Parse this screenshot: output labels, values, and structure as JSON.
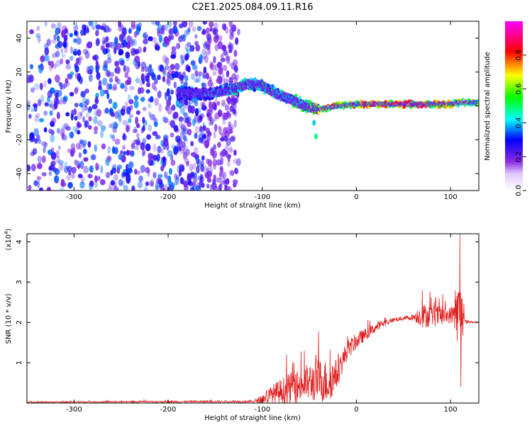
{
  "title": "C2E1.2025.084.09.11.R16",
  "chart_data": [
    {
      "type": "heatmap",
      "xlabel": "Height of straight line (km)",
      "ylabel": "Frequency (Hz)",
      "xlim": [
        -350,
        130
      ],
      "ylim": [
        -50,
        50
      ],
      "x_ticks": [
        -300,
        -200,
        -100,
        0,
        100
      ],
      "y_ticks": [
        -40,
        -20,
        0,
        20,
        40
      ],
      "colorbar": {
        "label": "Normalized spectral amplitude",
        "range": [
          0,
          1
        ],
        "ticks": [
          "0.0",
          "0.2",
          "0.4",
          "0.6",
          "0.8"
        ],
        "colormap": [
          "#ffffff",
          "#8a2be2",
          "#0000ff",
          "#00ffff",
          "#00ff00",
          "#ffff00",
          "#ff0000",
          "#ff00ff"
        ]
      },
      "noise_region": {
        "x": [
          -350,
          -150
        ],
        "y": [
          -50,
          50
        ],
        "level": 0.15
      },
      "ridge": [
        {
          "x": -190,
          "y": 8,
          "amp": 0.35
        },
        {
          "x": -160,
          "y": 7,
          "amp": 0.4
        },
        {
          "x": -130,
          "y": 10,
          "amp": 0.55
        },
        {
          "x": -115,
          "y": 13,
          "amp": 0.5
        },
        {
          "x": -100,
          "y": 12,
          "amp": 0.55
        },
        {
          "x": -85,
          "y": 7,
          "amp": 0.5
        },
        {
          "x": -70,
          "y": 4,
          "amp": 0.5
        },
        {
          "x": -55,
          "y": 0,
          "amp": 0.55
        },
        {
          "x": -40,
          "y": -2,
          "amp": 0.7
        },
        {
          "x": -20,
          "y": 0,
          "amp": 0.8
        },
        {
          "x": 0,
          "y": 1,
          "amp": 0.85
        },
        {
          "x": 20,
          "y": 1,
          "amp": 0.85
        },
        {
          "x": 40,
          "y": 1,
          "amp": 0.85
        },
        {
          "x": 60,
          "y": 1,
          "amp": 0.9
        },
        {
          "x": 80,
          "y": 1,
          "amp": 0.85
        },
        {
          "x": 100,
          "y": 1,
          "amp": 0.8
        },
        {
          "x": 110,
          "y": 2,
          "amp": 0.7
        },
        {
          "x": 130,
          "y": 2,
          "amp": 0.6
        }
      ],
      "side_branch": [
        {
          "x": -45,
          "y": -10,
          "amp": 0.4
        },
        {
          "x": -43,
          "y": -18,
          "amp": 0.5
        }
      ]
    },
    {
      "type": "line",
      "xlabel": "Height of straight line (km)",
      "ylabel": "SNR (10 * v/v)",
      "y_multiplier": "(x10",
      "y_multiplier_exp": "4",
      "y_multiplier_close": ")",
      "xlim": [
        -350,
        130
      ],
      "ylim": [
        0,
        4.2
      ],
      "x_ticks": [
        -300,
        -200,
        -100,
        0,
        100
      ],
      "y_ticks": [
        1,
        2,
        3,
        4
      ],
      "color": "#e02020",
      "envelope": [
        {
          "x": -350,
          "base": 0.02,
          "spread": 0.02
        },
        {
          "x": -110,
          "base": 0.03,
          "spread": 0.05
        },
        {
          "x": -100,
          "base": 0.05,
          "spread": 0.2
        },
        {
          "x": -90,
          "base": 0.1,
          "spread": 0.5
        },
        {
          "x": -70,
          "base": 0.2,
          "spread": 0.8
        },
        {
          "x": -55,
          "base": 0.3,
          "spread": 0.9
        },
        {
          "x": -40,
          "base": 0.35,
          "spread": 1.1
        },
        {
          "x": -30,
          "base": 0.3,
          "spread": 1.1
        },
        {
          "x": -20,
          "base": 0.6,
          "spread": 0.7
        },
        {
          "x": -10,
          "base": 1.2,
          "spread": 0.5
        },
        {
          "x": 0,
          "base": 1.45,
          "spread": 0.4
        },
        {
          "x": 10,
          "base": 1.65,
          "spread": 0.3
        },
        {
          "x": 25,
          "base": 1.9,
          "spread": 0.2
        },
        {
          "x": 40,
          "base": 2.05,
          "spread": 0.1
        },
        {
          "x": 60,
          "base": 2.1,
          "spread": 0.15
        },
        {
          "x": 70,
          "base": 2.05,
          "spread": 0.6
        },
        {
          "x": 90,
          "base": 2.05,
          "spread": 0.5
        },
        {
          "x": 100,
          "base": 2.1,
          "spread": 0.4
        },
        {
          "x": 108,
          "base": 1.9,
          "spread": 1.5
        },
        {
          "x": 112,
          "base": 2.0,
          "spread": 1.8
        },
        {
          "x": 115,
          "base": 2.0,
          "spread": 0.1
        },
        {
          "x": 130,
          "base": 2.0,
          "spread": 0.02
        }
      ],
      "peaks": [
        {
          "x": 110,
          "y": 4.2
        },
        {
          "x": 111,
          "y": 0.4
        },
        {
          "x": 105,
          "y": 2.8
        },
        {
          "x": 70,
          "y": 2.8
        },
        {
          "x": 88,
          "y": 2.6
        },
        {
          "x": -43,
          "y": 1.2
        },
        {
          "x": -68,
          "y": 1.0
        }
      ]
    }
  ]
}
